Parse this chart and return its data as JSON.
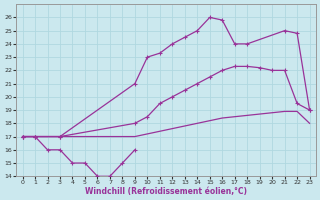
{
  "xlabel": "Windchill (Refroidissement éolien,°C)",
  "bg_color": "#cbe8ee",
  "grid_color": "#b0d8e0",
  "line_color": "#993399",
  "ylim": [
    14,
    27
  ],
  "yticks": [
    14,
    15,
    16,
    17,
    18,
    19,
    20,
    21,
    22,
    23,
    24,
    25,
    26
  ],
  "xlim": [
    -0.5,
    23.5
  ],
  "xticks": [
    0,
    1,
    2,
    3,
    4,
    5,
    6,
    7,
    8,
    9,
    10,
    11,
    12,
    13,
    14,
    15,
    16,
    17,
    18,
    19,
    20,
    21,
    22,
    23
  ],
  "line_zigzag_x": [
    0,
    1,
    2,
    3,
    4,
    5,
    6,
    7,
    8,
    9
  ],
  "line_zigzag_y": [
    17,
    17,
    16,
    16,
    15,
    15,
    14,
    14,
    15,
    16
  ],
  "line_flat_x": [
    0,
    1,
    2,
    3,
    4,
    5,
    6,
    7,
    8,
    9,
    10,
    11,
    12,
    13,
    14,
    15,
    16,
    17,
    18,
    19,
    20,
    21,
    22,
    23
  ],
  "line_flat_y": [
    17,
    17,
    17,
    17,
    17,
    17,
    17,
    17,
    17,
    17,
    17.2,
    17.4,
    17.6,
    17.8,
    18,
    18.2,
    18.4,
    18.5,
    18.6,
    18.7,
    18.8,
    18.9,
    18.9,
    18
  ],
  "line_upper_x": [
    0,
    1,
    3,
    9,
    10,
    11,
    12,
    13,
    14,
    15,
    16,
    17,
    18,
    21,
    22,
    23
  ],
  "line_upper_y": [
    17,
    17,
    17,
    21,
    23,
    23.3,
    24,
    24.5,
    25,
    26,
    25.8,
    24,
    24,
    25,
    24.8,
    19
  ],
  "line_mid_x": [
    0,
    1,
    3,
    9,
    10,
    11,
    12,
    13,
    14,
    15,
    16,
    17,
    18,
    19,
    20,
    21,
    22,
    23
  ],
  "line_mid_y": [
    17,
    17,
    17,
    18,
    18.5,
    19.5,
    20,
    20.5,
    21,
    21.5,
    22,
    22.3,
    22.3,
    22.2,
    22,
    22,
    19.5,
    19
  ]
}
